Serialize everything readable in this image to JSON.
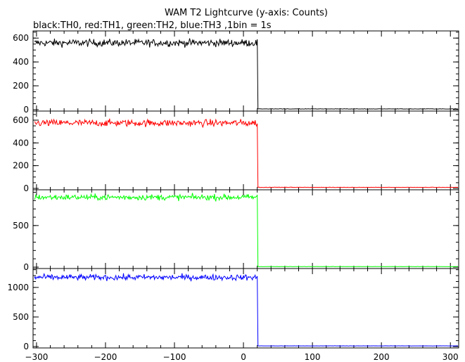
{
  "chart_data": {
    "type": "line",
    "title": "WAM T2 Lightcurve (y-axis: Counts)",
    "subtitle": "black:TH0, red:TH1, green:TH2, blue:TH3 ,1bin = 1s",
    "xlim": [
      -305,
      312
    ],
    "x_ticks": [
      -300,
      -200,
      -100,
      0,
      100,
      200,
      300
    ],
    "step_at": 21,
    "grid": false,
    "panels": [
      {
        "color": "#000000",
        "ylim": [
          0,
          660
        ],
        "y_ticks": [
          0,
          200,
          400,
          600
        ],
        "y_minor": 50,
        "before_level": 560,
        "noise": 22,
        "after_level": 5
      },
      {
        "color": "#ff0000",
        "ylim": [
          0,
          680
        ],
        "y_ticks": [
          0,
          200,
          400,
          600
        ],
        "y_minor": 50,
        "before_level": 575,
        "noise": 22,
        "after_level": 8
      },
      {
        "color": "#00ff00",
        "ylim": [
          0,
          930
        ],
        "y_ticks": [
          0,
          500
        ],
        "y_minor": 100,
        "before_level": 840,
        "noise": 25,
        "after_level": 5
      },
      {
        "color": "#0000ff",
        "ylim": [
          0,
          1320
        ],
        "y_ticks": [
          0,
          500,
          1000
        ],
        "y_minor": 100,
        "before_level": 1170,
        "noise": 35,
        "after_level": 10
      }
    ]
  }
}
